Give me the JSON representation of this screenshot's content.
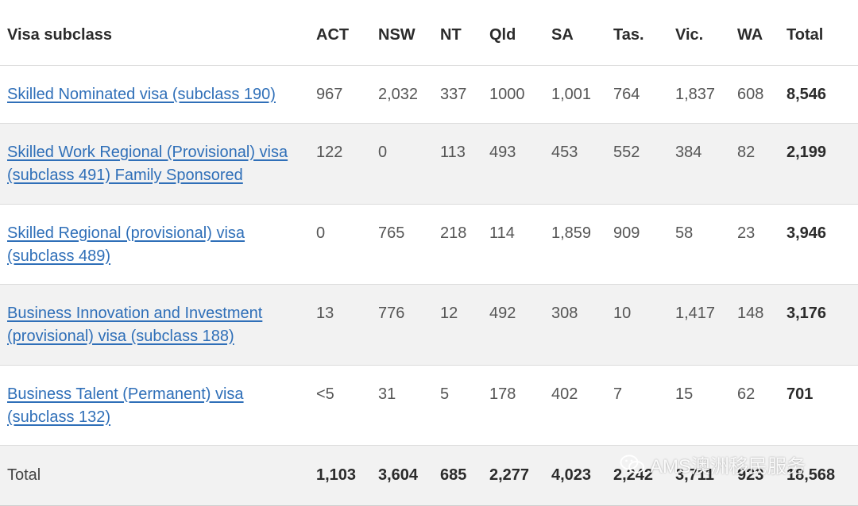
{
  "header": {
    "visa_subclass": "Visa subclass",
    "act": "ACT",
    "nsw": "NSW",
    "nt": "NT",
    "qld": "Qld",
    "sa": "SA",
    "tas": "Tas.",
    "vic": "Vic.",
    "wa": "WA",
    "total": "Total"
  },
  "rows": [
    {
      "visa_line1": "Skilled Nominated visa (subclass 190)",
      "visa_line2": "",
      "act": "967",
      "nsw": "2,032",
      "nt": "337",
      "qld": "1000",
      "sa": "1,001",
      "tas": "764",
      "vic": "1,837",
      "wa": "608",
      "total": "8,546"
    },
    {
      "visa_line1": "Skilled Work Regional (Provisional) visa",
      "visa_line2": "(subclass 491) Family Sponsored",
      "act": "122",
      "nsw": "0",
      "nt": "113",
      "qld": "493",
      "sa": "453",
      "tas": "552",
      "vic": "384",
      "wa": "82",
      "total": "2,199"
    },
    {
      "visa_line1": "Skilled Regional (provisional) visa",
      "visa_line2": "(subclass 489)",
      "act": "0",
      "nsw": "765",
      "nt": "218",
      "qld": "114",
      "sa": "1,859",
      "tas": "909",
      "vic": "58",
      "wa": "23",
      "total": "3,946"
    },
    {
      "visa_line1": "Business Innovation and Investment",
      "visa_line2": "(provisional) visa (subclass 188)",
      "act": "13",
      "nsw": "776",
      "nt": "12",
      "qld": "492",
      "sa": "308",
      "tas": "10",
      "vic": "1,417",
      "wa": "148",
      "total": "3,176"
    },
    {
      "visa_line1": "Business Talent (Permanent) visa",
      "visa_line2": "(subclass 132)",
      "act": "<5",
      "nsw": "31",
      "nt": "5",
      "qld": "178",
      "sa": "402",
      "tas": "7",
      "vic": "15",
      "wa": "62",
      "total": "701"
    }
  ],
  "total_row": {
    "label": "Total",
    "act": "1,103",
    "nsw": "3,604",
    "nt": "685",
    "qld": "2,277",
    "sa": "4,023",
    "tas": "2,242",
    "vic": "3,711",
    "wa": "923",
    "total": "18,568"
  },
  "watermark": {
    "text": "AMS澳洲移民服务",
    "icon": "wechat-icon"
  },
  "colors": {
    "link": "#2f6fb8",
    "stripe": "#f2f2f2",
    "border": "#dcdcdc"
  }
}
